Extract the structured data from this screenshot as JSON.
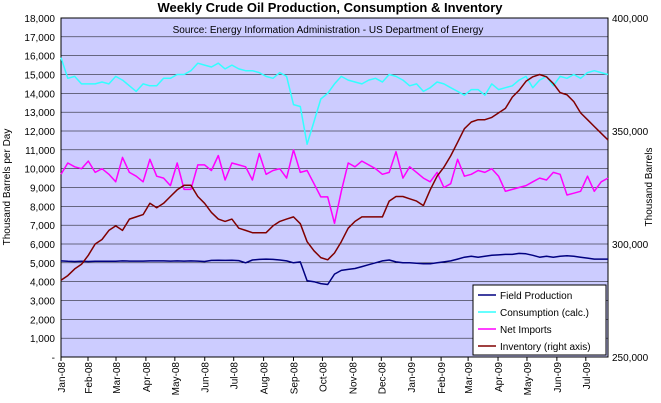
{
  "chart_data": {
    "type": "line",
    "title": "Weekly Crude Oil Production, Consumption & Inventory",
    "source": "Source: Energy Information Administration - US Department of Energy",
    "ylabel": "Thousand Barrels per Day",
    "y2label": "Thousand Barrels",
    "ylim": [
      0,
      18000
    ],
    "y2lim": [
      250000,
      400000
    ],
    "yticks": [
      "-",
      "1,000",
      "2,000",
      "3,000",
      "4,000",
      "5,000",
      "6,000",
      "7,000",
      "8,000",
      "9,000",
      "10,000",
      "11,000",
      "12,000",
      "13,000",
      "14,000",
      "15,000",
      "16,000",
      "17,000",
      "18,000"
    ],
    "y2ticks": [
      "250,000",
      "300,000",
      "350,000",
      "400,000"
    ],
    "x_start": "2008-01-04",
    "x_end": "2009-07-24",
    "x_labels": [
      "Jan-08",
      "Feb-08",
      "Mar-08",
      "Apr-08",
      "May-08",
      "Jun-08",
      "Jul-08",
      "Aug-08",
      "Sep-08",
      "Oct-08",
      "Nov-08",
      "Dec-08",
      "Jan-09",
      "Feb-09",
      "Mar-09",
      "Apr-09",
      "May-09",
      "Jun-09",
      "Jul-09"
    ],
    "grid": true,
    "legend_position": "bottom-right",
    "colors": {
      "plot_bg": "#ccccff",
      "grid": "#000000",
      "production": "#000080",
      "consumption": "#33ffff",
      "imports": "#ff00ff",
      "inventory": "#800000"
    },
    "series": [
      {
        "name": "Field Production",
        "axis": "left",
        "color": "#000080",
        "values": [
          5100,
          5080,
          5070,
          5080,
          5070,
          5080,
          5080,
          5080,
          5080,
          5100,
          5090,
          5090,
          5090,
          5100,
          5100,
          5100,
          5090,
          5100,
          5090,
          5100,
          5090,
          5070,
          5130,
          5140,
          5130,
          5140,
          5120,
          5000,
          5150,
          5180,
          5200,
          5180,
          5150,
          5100,
          5000,
          5050,
          4050,
          4000,
          3900,
          3850,
          4400,
          4600,
          4650,
          4700,
          4800,
          4900,
          5000,
          5100,
          5150,
          5050,
          5000,
          5000,
          4980,
          4950,
          4950,
          5000,
          5050,
          5100,
          5200,
          5300,
          5350,
          5300,
          5350,
          5400,
          5420,
          5450,
          5450,
          5500,
          5480,
          5400,
          5300,
          5350,
          5300,
          5350,
          5380,
          5350,
          5300,
          5250,
          5200,
          5200,
          5200
        ]
      },
      {
        "name": "Consumption (calc.)",
        "axis": "left",
        "color": "#33ffff",
        "values": [
          15900,
          14800,
          14900,
          14500,
          14500,
          14500,
          14600,
          14500,
          14900,
          14700,
          14400,
          14100,
          14500,
          14400,
          14400,
          14800,
          14800,
          15000,
          15000,
          15200,
          15600,
          15500,
          15400,
          15600,
          15300,
          15500,
          15300,
          15200,
          15200,
          15100,
          14900,
          14800,
          15100,
          14900,
          13400,
          13300,
          11300,
          12500,
          13700,
          14000,
          14500,
          14900,
          14700,
          14600,
          14500,
          14700,
          14800,
          14600,
          15000,
          14900,
          14700,
          14400,
          14500,
          14100,
          14300,
          14600,
          14500,
          14300,
          14100,
          13900,
          14200,
          14200,
          13900,
          14500,
          14200,
          14300,
          14400,
          14700,
          14900,
          14300,
          14700,
          14900,
          14400,
          14900,
          14800,
          15000,
          14800,
          15100,
          15200,
          15100,
          15000
        ]
      },
      {
        "name": "Net Imports",
        "axis": "left",
        "color": "#ff00ff",
        "values": [
          9700,
          10300,
          10100,
          10000,
          10400,
          9800,
          10000,
          9700,
          9300,
          10600,
          9800,
          9600,
          9300,
          10500,
          9600,
          9500,
          9100,
          10300,
          8900,
          8900,
          10200,
          10200,
          9900,
          10700,
          9400,
          10300,
          10200,
          10100,
          9400,
          10800,
          9700,
          9900,
          10000,
          9500,
          11000,
          9800,
          9900,
          9200,
          8500,
          8500,
          7100,
          8800,
          10300,
          10100,
          10400,
          10200,
          10000,
          9700,
          9800,
          10900,
          9500,
          10100,
          9800,
          9500,
          9300,
          9800,
          9000,
          9200,
          10500,
          9600,
          9700,
          9900,
          9800,
          10000,
          9600,
          8800,
          8900,
          9000,
          9100,
          9300,
          9500,
          9400,
          9800,
          9700,
          8600,
          8700,
          8800,
          9600,
          8800,
          9300,
          9500
        ]
      },
      {
        "name": "Inventory (right axis)",
        "axis": "right",
        "color": "#800000",
        "values": [
          284000,
          286000,
          289000,
          291000,
          295000,
          300000,
          302000,
          306000,
          308000,
          306000,
          311000,
          312000,
          313000,
          318000,
          316000,
          318000,
          321000,
          324000,
          326000,
          326000,
          321000,
          318000,
          314000,
          311000,
          310000,
          311000,
          307000,
          306000,
          305000,
          305000,
          305000,
          308000,
          310000,
          311000,
          312000,
          309000,
          301000,
          297000,
          294000,
          293000,
          296000,
          301000,
          307000,
          310000,
          312000,
          312000,
          312000,
          312000,
          319000,
          321000,
          321000,
          320000,
          319000,
          317000,
          324000,
          330000,
          334000,
          339000,
          345000,
          351000,
          354000,
          355000,
          355000,
          356000,
          358000,
          360000,
          365000,
          368000,
          372000,
          374000,
          375000,
          374000,
          371000,
          367000,
          366000,
          363000,
          358000,
          355000,
          352000,
          349000,
          346000
        ]
      }
    ]
  }
}
